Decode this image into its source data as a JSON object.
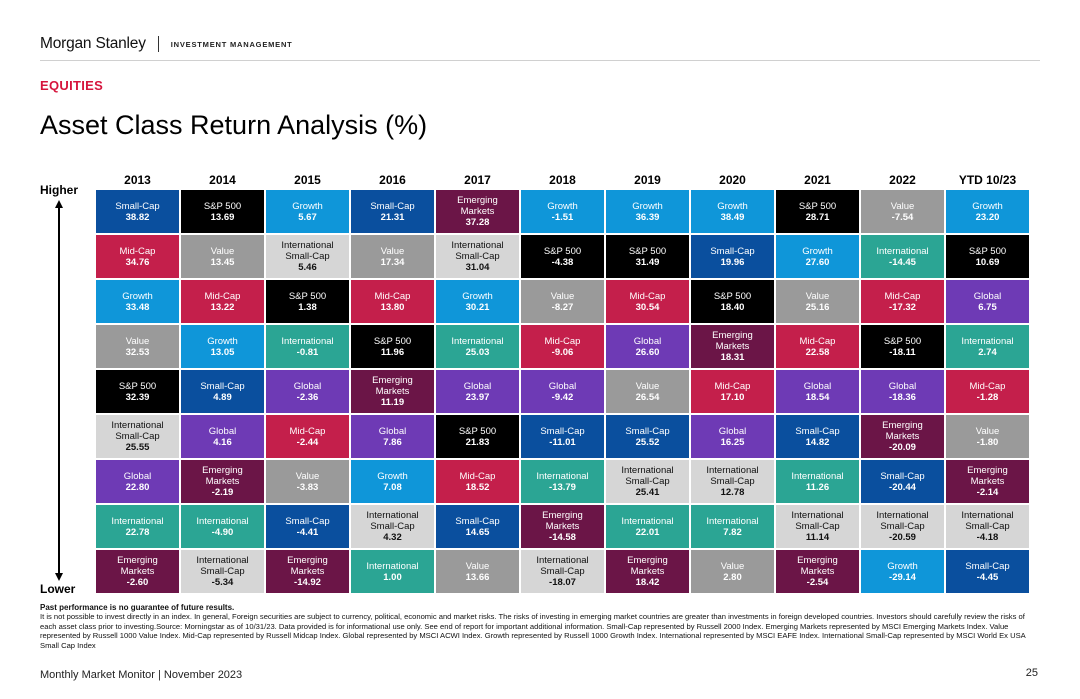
{
  "header": {
    "brand": "Morgan Stanley",
    "subbrand": "INVESTMENT MANAGEMENT"
  },
  "section_label": "EQUITIES",
  "title": "Asset Class Return Analysis (%)",
  "axis": {
    "higher": "Higher",
    "lower": "Lower"
  },
  "colors": {
    "Small-Cap": "#0a4f9e",
    "S&P 500": "#000000",
    "Growth": "#0f96d9",
    "Value": "#9a9a9a",
    "Mid-Cap": "#c41f4b",
    "International": "#2ba594",
    "International Small-Cap": "#d6d6d6",
    "Emerging Markets": "#6b1547",
    "Global": "#6e3ab5"
  },
  "years": [
    "2013",
    "2014",
    "2015",
    "2016",
    "2017",
    "2018",
    "2019",
    "2020",
    "2021",
    "2022",
    "YTD 10/23"
  ],
  "columns": [
    [
      {
        "name": "Small-Cap",
        "label": "Small-Cap",
        "value": "38.82"
      },
      {
        "name": "Mid-Cap",
        "label": "Mid-Cap",
        "value": "34.76"
      },
      {
        "name": "Growth",
        "label": "Growth",
        "value": "33.48"
      },
      {
        "name": "Value",
        "label": "Value",
        "value": "32.53"
      },
      {
        "name": "S&P 500",
        "label": "S&P 500",
        "value": "32.39"
      },
      {
        "name": "International Small-Cap",
        "label": "International\nSmall-Cap",
        "value": "25.55"
      },
      {
        "name": "Global",
        "label": "Global",
        "value": "22.80"
      },
      {
        "name": "International",
        "label": "International",
        "value": "22.78"
      },
      {
        "name": "Emerging Markets",
        "label": "Emerging\nMarkets",
        "value": "-2.60"
      }
    ],
    [
      {
        "name": "S&P 500",
        "label": "S&P 500",
        "value": "13.69"
      },
      {
        "name": "Value",
        "label": "Value",
        "value": "13.45"
      },
      {
        "name": "Mid-Cap",
        "label": "Mid-Cap",
        "value": "13.22"
      },
      {
        "name": "Growth",
        "label": "Growth",
        "value": "13.05"
      },
      {
        "name": "Small-Cap",
        "label": "Small-Cap",
        "value": "4.89"
      },
      {
        "name": "Global",
        "label": "Global",
        "value": "4.16"
      },
      {
        "name": "Emerging Markets",
        "label": "Emerging\nMarkets",
        "value": "-2.19"
      },
      {
        "name": "International",
        "label": "International",
        "value": "-4.90"
      },
      {
        "name": "International Small-Cap",
        "label": "International\nSmall-Cap",
        "value": "-5.34"
      }
    ],
    [
      {
        "name": "Growth",
        "label": "Growth",
        "value": "5.67"
      },
      {
        "name": "International Small-Cap",
        "label": "International\nSmall-Cap",
        "value": "5.46"
      },
      {
        "name": "S&P 500",
        "label": "S&P 500",
        "value": "1.38"
      },
      {
        "name": "International",
        "label": "International",
        "value": "-0.81"
      },
      {
        "name": "Global",
        "label": "Global",
        "value": "-2.36"
      },
      {
        "name": "Mid-Cap",
        "label": "Mid-Cap",
        "value": "-2.44"
      },
      {
        "name": "Value",
        "label": "Value",
        "value": "-3.83"
      },
      {
        "name": "Small-Cap",
        "label": "Small-Cap",
        "value": "-4.41"
      },
      {
        "name": "Emerging Markets",
        "label": "Emerging\nMarkets",
        "value": "-14.92"
      }
    ],
    [
      {
        "name": "Small-Cap",
        "label": "Small-Cap",
        "value": "21.31"
      },
      {
        "name": "Value",
        "label": "Value",
        "value": "17.34"
      },
      {
        "name": "Mid-Cap",
        "label": "Mid-Cap",
        "value": "13.80"
      },
      {
        "name": "S&P 500",
        "label": "S&P 500",
        "value": "11.96"
      },
      {
        "name": "Emerging Markets",
        "label": "Emerging\nMarkets",
        "value": "11.19"
      },
      {
        "name": "Global",
        "label": "Global",
        "value": "7.86"
      },
      {
        "name": "Growth",
        "label": "Growth",
        "value": "7.08"
      },
      {
        "name": "International Small-Cap",
        "label": "International\nSmall-Cap",
        "value": "4.32"
      },
      {
        "name": "International",
        "label": "International",
        "value": "1.00"
      }
    ],
    [
      {
        "name": "Emerging Markets",
        "label": "Emerging\nMarkets",
        "value": "37.28"
      },
      {
        "name": "International Small-Cap",
        "label": "International\nSmall-Cap",
        "value": "31.04"
      },
      {
        "name": "Growth",
        "label": "Growth",
        "value": "30.21"
      },
      {
        "name": "International",
        "label": "International",
        "value": "25.03"
      },
      {
        "name": "Global",
        "label": "Global",
        "value": "23.97"
      },
      {
        "name": "S&P 500",
        "label": "S&P 500",
        "value": "21.83"
      },
      {
        "name": "Mid-Cap",
        "label": "Mid-Cap",
        "value": "18.52"
      },
      {
        "name": "Small-Cap",
        "label": "Small-Cap",
        "value": "14.65"
      },
      {
        "name": "Value",
        "label": "Value",
        "value": "13.66"
      }
    ],
    [
      {
        "name": "Growth",
        "label": "Growth",
        "value": "-1.51"
      },
      {
        "name": "S&P 500",
        "label": "S&P 500",
        "value": "-4.38"
      },
      {
        "name": "Value",
        "label": "Value",
        "value": "-8.27"
      },
      {
        "name": "Mid-Cap",
        "label": "Mid-Cap",
        "value": "-9.06"
      },
      {
        "name": "Global",
        "label": "Global",
        "value": "-9.42"
      },
      {
        "name": "Small-Cap",
        "label": "Small-Cap",
        "value": "-11.01"
      },
      {
        "name": "International",
        "label": "International",
        "value": "-13.79"
      },
      {
        "name": "Emerging Markets",
        "label": "Emerging\nMarkets",
        "value": "-14.58"
      },
      {
        "name": "International Small-Cap",
        "label": "International\nSmall-Cap",
        "value": "-18.07"
      }
    ],
    [
      {
        "name": "Growth",
        "label": "Growth",
        "value": "36.39"
      },
      {
        "name": "S&P 500",
        "label": "S&P 500",
        "value": "31.49"
      },
      {
        "name": "Mid-Cap",
        "label": "Mid-Cap",
        "value": "30.54"
      },
      {
        "name": "Global",
        "label": "Global",
        "value": "26.60"
      },
      {
        "name": "Value",
        "label": "Value",
        "value": "26.54"
      },
      {
        "name": "Small-Cap",
        "label": "Small-Cap",
        "value": "25.52"
      },
      {
        "name": "International Small-Cap",
        "label": "International\nSmall-Cap",
        "value": "25.41"
      },
      {
        "name": "International",
        "label": "International",
        "value": "22.01"
      },
      {
        "name": "Emerging Markets",
        "label": "Emerging\nMarkets",
        "value": "18.42"
      }
    ],
    [
      {
        "name": "Growth",
        "label": "Growth",
        "value": "38.49"
      },
      {
        "name": "Small-Cap",
        "label": "Small-Cap",
        "value": "19.96"
      },
      {
        "name": "S&P 500",
        "label": "S&P 500",
        "value": "18.40"
      },
      {
        "name": "Emerging Markets",
        "label": "Emerging\nMarkets",
        "value": "18.31"
      },
      {
        "name": "Mid-Cap",
        "label": "Mid-Cap",
        "value": "17.10"
      },
      {
        "name": "Global",
        "label": "Global",
        "value": "16.25"
      },
      {
        "name": "International Small-Cap",
        "label": "International\nSmall-Cap",
        "value": "12.78"
      },
      {
        "name": "International",
        "label": "International",
        "value": "7.82"
      },
      {
        "name": "Value",
        "label": "Value",
        "value": "2.80"
      }
    ],
    [
      {
        "name": "S&P 500",
        "label": "S&P 500",
        "value": "28.71"
      },
      {
        "name": "Growth",
        "label": "Growth",
        "value": "27.60"
      },
      {
        "name": "Value",
        "label": "Value",
        "value": "25.16"
      },
      {
        "name": "Mid-Cap",
        "label": "Mid-Cap",
        "value": "22.58"
      },
      {
        "name": "Global",
        "label": "Global",
        "value": "18.54"
      },
      {
        "name": "Small-Cap",
        "label": "Small-Cap",
        "value": "14.82"
      },
      {
        "name": "International",
        "label": "International",
        "value": "11.26"
      },
      {
        "name": "International Small-Cap",
        "label": "International\nSmall-Cap",
        "value": "11.14"
      },
      {
        "name": "Emerging Markets",
        "label": "Emerging\nMarkets",
        "value": "-2.54"
      }
    ],
    [
      {
        "name": "Value",
        "label": "Value",
        "value": "-7.54"
      },
      {
        "name": "International",
        "label": "International",
        "value": "-14.45"
      },
      {
        "name": "Mid-Cap",
        "label": "Mid-Cap",
        "value": "-17.32"
      },
      {
        "name": "S&P 500",
        "label": "S&P 500",
        "value": "-18.11"
      },
      {
        "name": "Global",
        "label": "Global",
        "value": "-18.36"
      },
      {
        "name": "Emerging Markets",
        "label": "Emerging\nMarkets",
        "value": "-20.09"
      },
      {
        "name": "Small-Cap",
        "label": "Small-Cap",
        "value": "-20.44"
      },
      {
        "name": "International Small-Cap",
        "label": "International\nSmall-Cap",
        "value": "-20.59"
      },
      {
        "name": "Growth",
        "label": "Growth",
        "value": "-29.14"
      }
    ],
    [
      {
        "name": "Growth",
        "label": "Growth",
        "value": "23.20"
      },
      {
        "name": "S&P 500",
        "label": "S&P 500",
        "value": "10.69"
      },
      {
        "name": "Global",
        "label": "Global",
        "value": "6.75"
      },
      {
        "name": "International",
        "label": "International",
        "value": "2.74"
      },
      {
        "name": "Mid-Cap",
        "label": "Mid-Cap",
        "value": "-1.28"
      },
      {
        "name": "Value",
        "label": "Value",
        "value": "-1.80"
      },
      {
        "name": "Emerging Markets",
        "label": "Emerging\nMarkets",
        "value": "-2.14"
      },
      {
        "name": "International Small-Cap",
        "label": "International\nSmall-Cap",
        "value": "-4.18"
      },
      {
        "name": "Small-Cap",
        "label": "Small-Cap",
        "value": "-4.45"
      }
    ]
  ],
  "notes": {
    "bold_line": "Past performance is no guarantee of future results.",
    "body": "It is not possible to invest directly in an index. In general, Foreign securities are subject to currency, political, economic and market risks. The risks of investing in emerging market countries are greater than investments in foreign developed countries. Investors should carefully review the risks of each asset class prior to investing.Source: Morningstar as of 10/31/23. Data provided is for informational use only. See end of report for important additional information. Small-Cap represented by Russell 2000 Index. Emerging Markets represented by MSCI Emerging Markets Index. Value represented by Russell 1000 Value Index. Mid-Cap represented by Russell Midcap Index. Global represented by MSCI ACWI Index. Growth represented by Russell 1000 Growth Index. International represented by MSCI EAFE Index. International Small-Cap represented by MSCI World Ex USA Small Cap Index"
  },
  "footer": {
    "text": "Monthly Market Monitor | November 2023",
    "page": "25"
  }
}
